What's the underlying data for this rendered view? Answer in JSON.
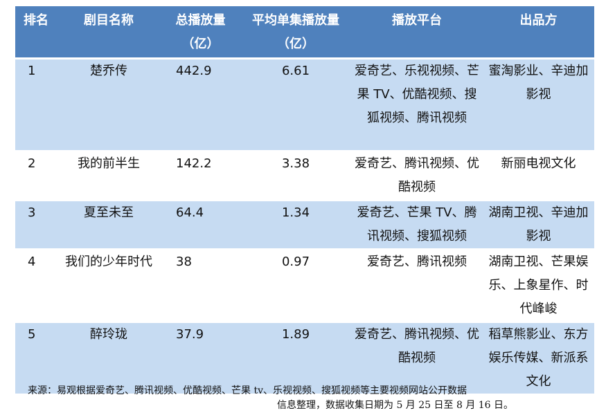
{
  "table": {
    "headers": [
      "排名",
      "剧目名称",
      "总播放量（亿）",
      "平均单集播放量（亿）",
      "播放平台",
      "出品方"
    ],
    "rows": [
      {
        "rank": "1",
        "name": "楚乔传",
        "total": "442.9",
        "avg": "6.61",
        "platforms": "爱奇艺、乐视视频、芒果 TV、优酷视频、搜狐视频、腾讯视频",
        "producer": "蜜淘影业、辛迪加影视"
      },
      {
        "rank": "2",
        "name": "我的前半生",
        "total": "142.2",
        "avg": "3.38",
        "platforms": "爱奇艺、腾讯视频、优酷视频",
        "producer": "新丽电视文化"
      },
      {
        "rank": "3",
        "name": "夏至未至",
        "total": "64.4",
        "avg": "1.34",
        "platforms": "爱奇艺、芒果 TV、腾讯视频、搜狐视频",
        "producer": "湖南卫视、辛迪加影视"
      },
      {
        "rank": "4",
        "name": "我们的少年时代",
        "total": "38",
        "avg": "0.97",
        "platforms": "爱奇艺、腾讯视频",
        "producer": "湖南卫视、芒果娱乐、上象星作、时代峰峻"
      },
      {
        "rank": "5",
        "name": "醉玲珑",
        "total": "37.9",
        "avg": "1.89",
        "platforms": "爱奇艺、腾讯视频、优酷视频",
        "producer": "稻草熊影业、东方娱乐传媒、新派系文化"
      }
    ]
  },
  "source": {
    "line1": "来源：易观根据爱奇艺、腾讯视频、优酷视频、芒果 tv、乐视视频、搜狐视频等主要视频网站公开数据",
    "line2": "信息整理，数据收集日期为 5 月 25 日至 8 月 16 日。"
  }
}
